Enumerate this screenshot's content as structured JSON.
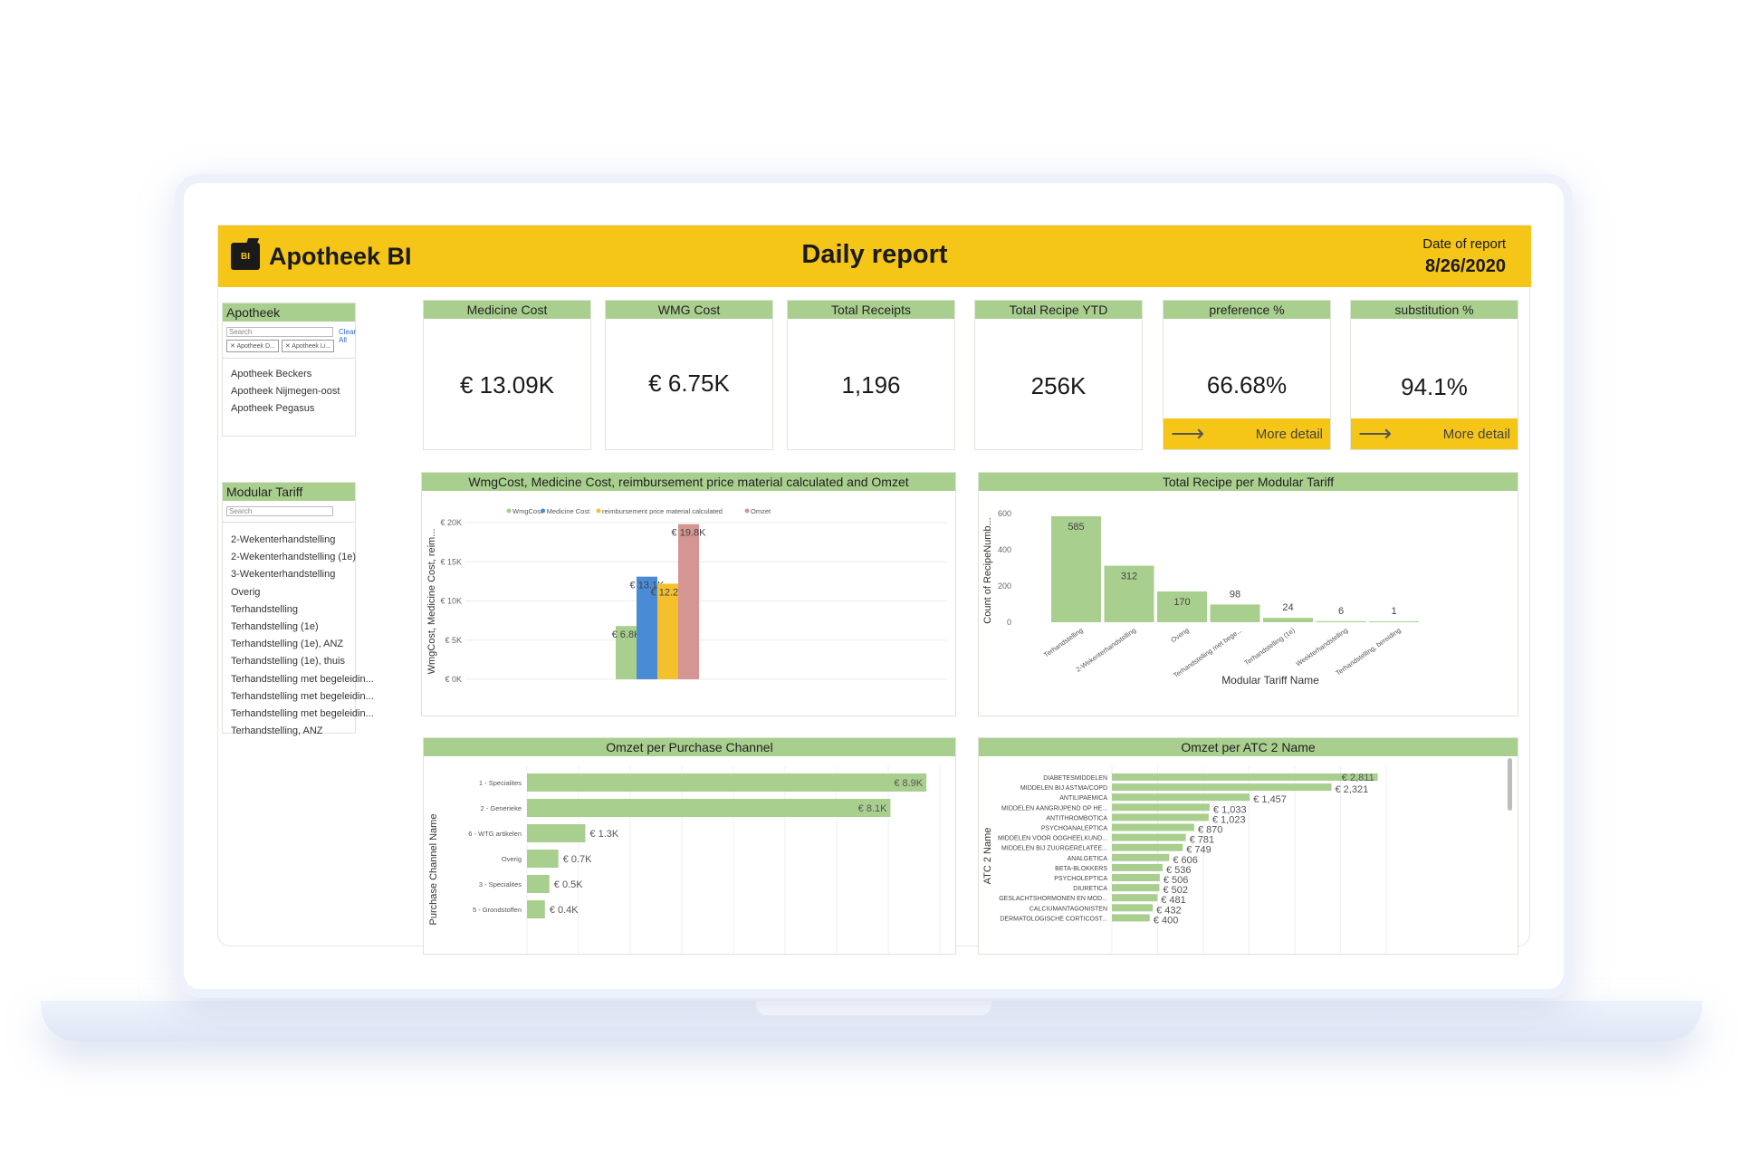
{
  "header": {
    "logo_text": "BI",
    "app_name": "Apotheek BI",
    "title": "Daily report",
    "date_label": "Date of report",
    "date_value": "8/26/2020"
  },
  "slicer_apotheek": {
    "title": "Apotheek",
    "search_placeholder": "Search",
    "clear_all": "Clear All",
    "chips": [
      "Apotheek D...",
      "Apotheek Li..."
    ],
    "items": [
      "Apotheek Beckers",
      "Apotheek Nijmegen-oost",
      "Apotheek Pegasus"
    ]
  },
  "slicer_tariff": {
    "title": "Modular Tariff",
    "search_placeholder": "Search",
    "items": [
      "2-Wekenterhandstelling",
      "2-Wekenterhandstelling (1e)",
      "3-Wekenterhandstelling",
      "Overig",
      "Terhandstelling",
      "Terhandstelling (1e)",
      "Terhandstelling (1e), ANZ",
      "Terhandstelling (1e), thuis",
      "Terhandstelling met begeleidin...",
      "Terhandstelling met begeleidin...",
      "Terhandstelling met begeleidin...",
      "Terhandstelling, ANZ"
    ]
  },
  "kpis": [
    {
      "title": "Medicine Cost",
      "value": "€ 13.09K"
    },
    {
      "title": "WMG Cost",
      "value": "€ 6.75K"
    },
    {
      "title": "Total Receipts",
      "value": "1,196"
    },
    {
      "title": "Total Recipe YTD",
      "value": "256K"
    },
    {
      "title": "preference %",
      "value": "66.68%",
      "link": "More detail"
    },
    {
      "title": "substitution %",
      "value": "94.1%",
      "link": "More detail"
    }
  ],
  "colors": {
    "brand_yellow": "#f5c518",
    "header_green": "#a9cf8f",
    "bar_green": "#a9cf8f",
    "bar_blue": "#4a8bd6",
    "bar_yellow": "#f5c02e",
    "bar_rose": "#d49593"
  },
  "chart_data": [
    {
      "type": "bar",
      "title": "WmgCost, Medicine Cost, reimbursement price material calculated and Omzet",
      "ylabel": "WmgCost, Medicine Cost, reim...",
      "xlabel": "",
      "ylim": [
        0,
        20000
      ],
      "yticks": [
        "€ 0K",
        "€ 5K",
        "€ 10K",
        "€ 15K",
        "€ 20K"
      ],
      "legend_position": "top",
      "series": [
        {
          "name": "WmgCost",
          "value": 6800,
          "label": "€ 6.8K",
          "color": "#a9cf8f"
        },
        {
          "name": "Medicine Cost",
          "value": 13100,
          "label": "€ 13.1K",
          "color": "#4a8bd6"
        },
        {
          "name": "reimbursement price material calculated",
          "value": 12200,
          "label": "€ 12.2K",
          "color": "#f5c02e"
        },
        {
          "name": "Omzet",
          "value": 19800,
          "label": "€ 19.8K",
          "color": "#d49593"
        }
      ]
    },
    {
      "type": "bar",
      "title": "Total Recipe per Modular Tariff",
      "ylabel": "Count of RecipeNumb...",
      "xlabel": "Modular Tariff Name",
      "ylim": [
        0,
        600
      ],
      "yticks": [
        "0",
        "200",
        "400",
        "600"
      ],
      "categories": [
        "Terhandstelling",
        "2-Wekenterhandstelling",
        "Overig",
        "Terhandstelling met bege...",
        "Terhandstelling (1e)",
        "Weekterhandstelling",
        "Terhandstelling, bereiding"
      ],
      "values": [
        585,
        312,
        170,
        98,
        24,
        6,
        1
      ]
    },
    {
      "type": "bar",
      "orientation": "horizontal",
      "title": "Omzet per Purchase Channel",
      "ylabel": "Purchase Channel Name",
      "categories": [
        "1 - Specialites",
        "2 - Generieke",
        "6 - WTG artikelen",
        "Overig",
        "3 - Specialites",
        "5 - Grondstoffen"
      ],
      "values": [
        8.9,
        8.1,
        1.3,
        0.7,
        0.5,
        0.4
      ],
      "labels": [
        "€ 8.9K",
        "€ 8.1K",
        "€ 1.3K",
        "€ 0.7K",
        "€ 0.5K",
        "€ 0.4K"
      ],
      "xlim": [
        0,
        9.2
      ]
    },
    {
      "type": "bar",
      "orientation": "horizontal",
      "title": "Omzet per ATC 2 Name",
      "ylabel": "ATC 2 Name",
      "categories": [
        "DIABETESMIDDELEN",
        "MIDDELEN BIJ ASTMA/COPD",
        "ANTILIPAEMICA",
        "MIDDELEN AANGRIJPEND OP HE...",
        "ANTITHROMBOTICA",
        "PSYCHOANALEPTICA",
        "MIDDELEN VOOR OOGHEELKUND...",
        "MIDDELEN BIJ ZUURGERELATEE...",
        "ANALGETICA",
        "BETA-BLOKKERS",
        "PSYCHOLEPTICA",
        "DIURETICA",
        "GESLACHTSHORMONEN EN MOD...",
        "CALCIUMANTAGONISTEN",
        "DERMATOLOGISCHE CORTICOST..."
      ],
      "values": [
        2811,
        2321,
        1457,
        1033,
        1023,
        870,
        781,
        749,
        606,
        536,
        506,
        502,
        481,
        432,
        400
      ],
      "labels": [
        "€ 2,811",
        "€ 2,321",
        "€ 1,457",
        "€ 1,033",
        "€ 1,023",
        "€ 870",
        "€ 781",
        "€ 749",
        "€ 606",
        "€ 536",
        "€ 506",
        "€ 502",
        "€ 481",
        "€ 432",
        "€ 400"
      ],
      "xlim": [
        0,
        2900
      ]
    }
  ]
}
